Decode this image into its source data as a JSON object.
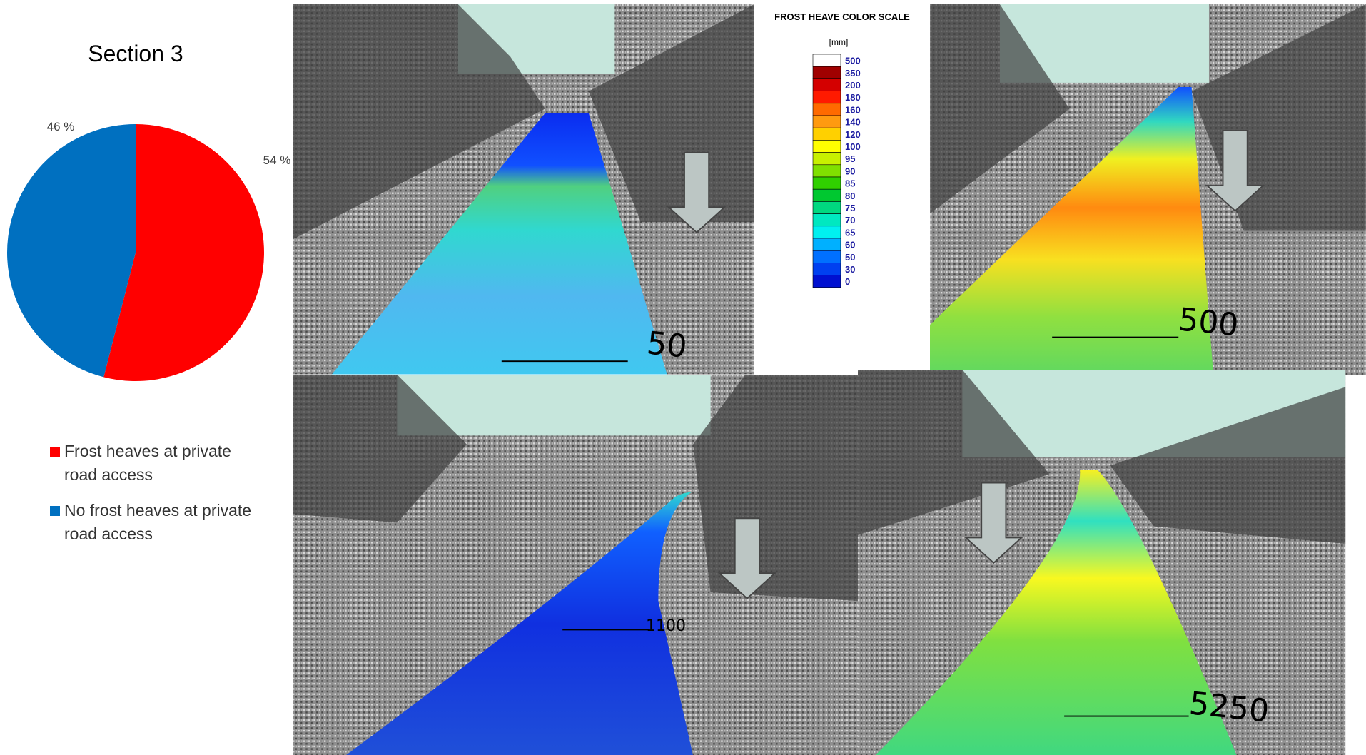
{
  "chart_data": {
    "type": "pie",
    "title": "Section 3",
    "categories": [
      "Frost heaves at private road access",
      "No frost heaves at private road access"
    ],
    "values": [
      54,
      46
    ],
    "value_labels": [
      "54 %",
      "46 %"
    ],
    "colors": [
      "#ff0000",
      "#0070c0"
    ]
  },
  "color_scale": {
    "title": "FROST HEAVE COLOR SCALE",
    "unit": "[mm]",
    "levels": [
      {
        "label": "500",
        "color": "#ffffff"
      },
      {
        "label": "350",
        "color": "#a00000"
      },
      {
        "label": "200",
        "color": "#d40000"
      },
      {
        "label": "180",
        "color": "#ff1a00"
      },
      {
        "label": "160",
        "color": "#ff6a00"
      },
      {
        "label": "140",
        "color": "#ff9a10"
      },
      {
        "label": "120",
        "color": "#ffd000"
      },
      {
        "label": "100",
        "color": "#ffff00"
      },
      {
        "label": "95",
        "color": "#c8f000"
      },
      {
        "label": "90",
        "color": "#80e000"
      },
      {
        "label": "85",
        "color": "#30d000"
      },
      {
        "label": "80",
        "color": "#00c830"
      },
      {
        "label": "75",
        "color": "#00d880"
      },
      {
        "label": "70",
        "color": "#00e8c0"
      },
      {
        "label": "65",
        "color": "#00f0f0"
      },
      {
        "label": "60",
        "color": "#00b0ff"
      },
      {
        "label": "50",
        "color": "#0070ff"
      },
      {
        "label": "30",
        "color": "#0040f0"
      },
      {
        "label": "0",
        "color": "#0010d0"
      }
    ]
  },
  "photos": [
    {
      "label": "50"
    },
    {
      "label": "500"
    },
    {
      "label": "1100"
    },
    {
      "label": "5250"
    }
  ]
}
